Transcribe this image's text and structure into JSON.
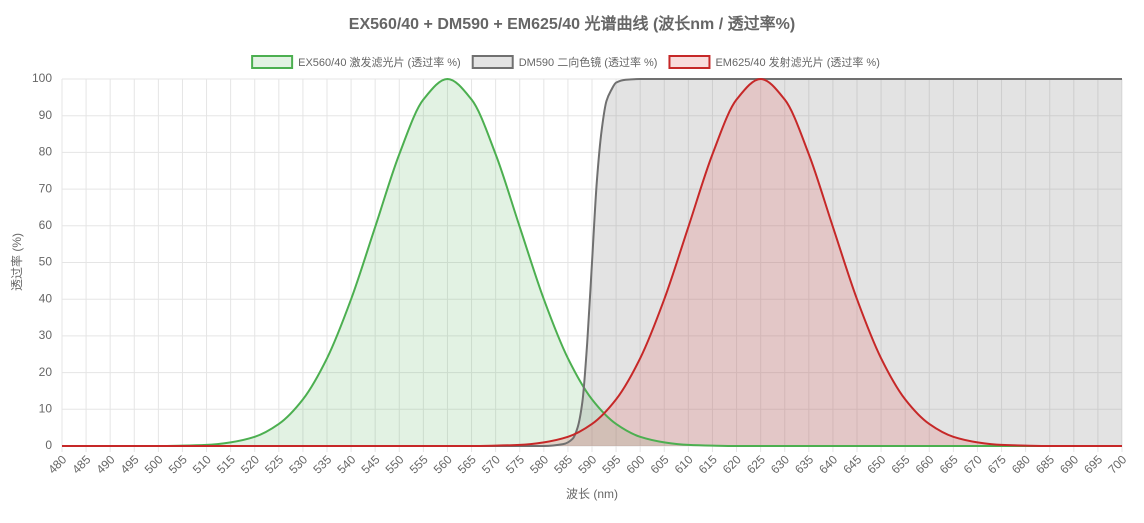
{
  "chart_data": {
    "type": "line",
    "title": "EX560/40 + DM590 + EM625/40 光谱曲线 (波长nm / 透过率%)",
    "x_label": "波长 (nm)",
    "y_label": "透过率 (%)",
    "xlim": [
      480,
      700
    ],
    "ylim": [
      0,
      100
    ],
    "xticks": [
      480,
      485,
      490,
      495,
      500,
      505,
      510,
      515,
      520,
      525,
      530,
      535,
      540,
      545,
      550,
      555,
      560,
      565,
      570,
      575,
      580,
      585,
      590,
      595,
      600,
      605,
      610,
      615,
      620,
      625,
      630,
      635,
      640,
      645,
      650,
      655,
      660,
      665,
      670,
      675,
      680,
      685,
      690,
      695,
      700
    ],
    "yticks": [
      0,
      10,
      20,
      30,
      40,
      50,
      60,
      70,
      80,
      90,
      100
    ],
    "grid": true,
    "legend": "top",
    "series": [
      {
        "name": "EX560/40 激发滤光片 (透过率 %)",
        "color": "#4caf50",
        "fill": "rgba(76,175,80,0.16)",
        "x": [
          480,
          485,
          490,
          495,
          500,
          505,
          510,
          515,
          520,
          525,
          530,
          535,
          540,
          545,
          550,
          555,
          560,
          565,
          570,
          575,
          580,
          585,
          590,
          595,
          600,
          605,
          610,
          615,
          620,
          625,
          630,
          635,
          640,
          645,
          650,
          655,
          660,
          665,
          670,
          675,
          680,
          685,
          690,
          695,
          700
        ],
        "values": [
          0,
          0,
          0,
          0,
          0,
          0.1,
          0.3,
          1.0,
          2.5,
          6.0,
          12.7,
          23.9,
          40.0,
          59.7,
          79.5,
          94.4,
          100,
          94.4,
          79.5,
          59.7,
          40.0,
          23.9,
          12.7,
          6.0,
          2.5,
          1.0,
          0.3,
          0.1,
          0,
          0,
          0,
          0,
          0,
          0,
          0,
          0,
          0,
          0,
          0,
          0,
          0,
          0,
          0,
          0,
          0
        ]
      },
      {
        "name": "DM590 二向色镜 (透过率 %)",
        "color": "#707070",
        "fill": "rgba(128,128,128,0.22)",
        "x": [
          480,
          580,
          584,
          586,
          587,
          588,
          589,
          590,
          591,
          592,
          593,
          594,
          595,
          597,
          600,
          700
        ],
        "values": [
          0,
          0,
          0.5,
          2,
          5,
          12,
          28,
          50,
          72,
          86,
          94,
          97,
          99,
          99.8,
          100,
          100
        ]
      },
      {
        "name": "EM625/40 发射滤光片 (透过率 %)",
        "color": "#c62828",
        "fill": "rgba(229,115,115,0.25)",
        "x": [
          480,
          485,
          490,
          495,
          500,
          505,
          510,
          515,
          520,
          525,
          530,
          535,
          540,
          545,
          550,
          555,
          560,
          565,
          570,
          575,
          580,
          585,
          590,
          595,
          600,
          605,
          610,
          615,
          620,
          625,
          630,
          635,
          640,
          645,
          650,
          655,
          660,
          665,
          670,
          675,
          680,
          685,
          690,
          695,
          700
        ],
        "values": [
          0,
          0,
          0,
          0,
          0,
          0,
          0,
          0,
          0,
          0,
          0,
          0,
          0,
          0,
          0,
          0,
          0,
          0,
          0.1,
          0.3,
          1.0,
          2.5,
          6.0,
          12.7,
          23.9,
          40.0,
          59.7,
          79.5,
          94.4,
          100,
          94.4,
          79.5,
          59.7,
          40.0,
          23.9,
          12.7,
          6.0,
          2.5,
          1.0,
          0.3,
          0.1,
          0,
          0,
          0,
          0
        ]
      }
    ]
  }
}
